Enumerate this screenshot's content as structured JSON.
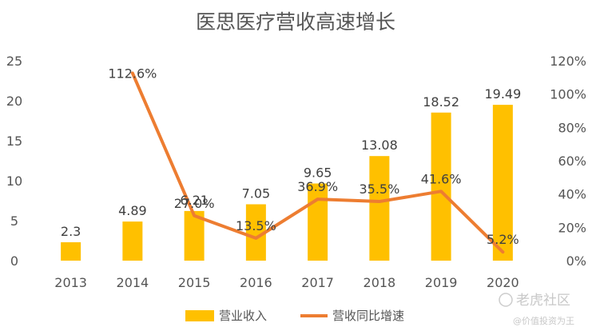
{
  "chart_data": {
    "type": "bar",
    "title": "医思医疗营收高速增长",
    "categories": [
      "2013",
      "2014",
      "2015",
      "2016",
      "2017",
      "2018",
      "2019",
      "2020"
    ],
    "series": [
      {
        "name": "营业收入",
        "kind": "bar",
        "axis": "left",
        "color": "#FFC000",
        "values": [
          2.3,
          4.89,
          6.21,
          7.05,
          9.65,
          13.08,
          18.52,
          19.49
        ],
        "labels": [
          "2.3",
          "4.89",
          "6.21",
          "7.05",
          "9.65",
          "13.08",
          "18.52",
          "19.49"
        ]
      },
      {
        "name": "营收同比增速",
        "kind": "line",
        "axis": "right",
        "color": "#ED7D31",
        "values": [
          null,
          112.6,
          27.0,
          13.5,
          36.9,
          35.5,
          41.6,
          5.2
        ],
        "labels": [
          "",
          "112.6%",
          "27.0%",
          "13.5%",
          "36.9%",
          "35.5%",
          "41.6%",
          "5.2%"
        ]
      }
    ],
    "y_left": {
      "min": 0,
      "max": 25,
      "ticks": [
        "0",
        "5",
        "10",
        "15",
        "20",
        "25"
      ]
    },
    "y_right": {
      "min": 0,
      "max": 120,
      "ticks": [
        "0%",
        "20%",
        "40%",
        "60%",
        "80%",
        "100%",
        "120%"
      ]
    },
    "grid": false,
    "legend": "bottom"
  },
  "watermark": {
    "brand": "老虎社区",
    "author": "@价值投资为王"
  }
}
